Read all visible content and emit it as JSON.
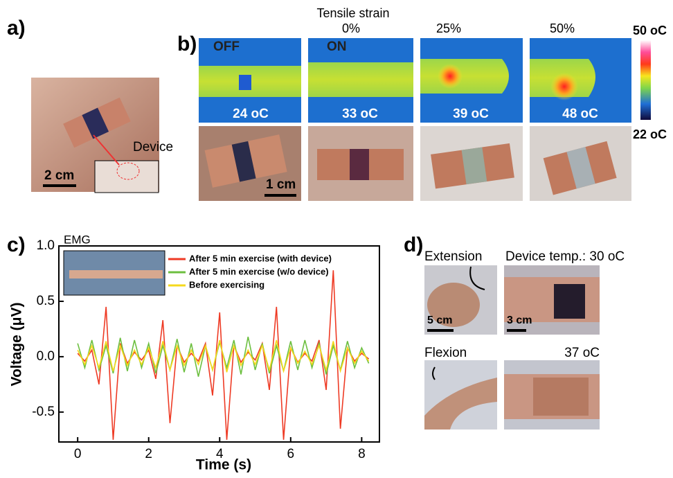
{
  "panel_a": {
    "label": "a)",
    "device": "Device",
    "scale": "2 cm"
  },
  "panel_b": {
    "label": "b)",
    "header": "Tensile strain",
    "strains": [
      "0%",
      "25%",
      "50%"
    ],
    "states": [
      "OFF",
      "ON"
    ],
    "temps": [
      "24 oC",
      "33 oC",
      "39 oC",
      "48 oC"
    ],
    "colorbar_max": "50 oC",
    "colorbar_min": "22 oC",
    "scale": "1 cm"
  },
  "chart_data": {
    "type": "line",
    "label": "c)",
    "inset": "EMG",
    "x_label": "Time (s)",
    "y_label": "Voltage (μV)",
    "x": [
      0,
      0.2,
      0.4,
      0.6,
      0.8,
      1.0,
      1.2,
      1.4,
      1.6,
      1.8,
      2.0,
      2.2,
      2.4,
      2.6,
      2.8,
      3.0,
      3.2,
      3.4,
      3.6,
      3.8,
      4.0,
      4.2,
      4.4,
      4.6,
      4.8,
      5.0,
      5.2,
      5.4,
      5.6,
      5.8,
      6.0,
      6.2,
      6.4,
      6.6,
      6.8,
      7.0,
      7.2,
      7.4,
      7.6,
      7.8,
      8.0,
      8.2
    ],
    "series": [
      {
        "name": "After 5 min exercise (with device)",
        "color": "#ee3a24",
        "values": [
          0.03,
          -0.04,
          0.06,
          -0.25,
          0.45,
          -0.75,
          0.12,
          -0.06,
          0.04,
          -0.03,
          0.06,
          -0.2,
          0.33,
          -0.6,
          0.1,
          -0.05,
          0.03,
          -0.04,
          0.12,
          -0.35,
          0.4,
          -0.75,
          0.1,
          -0.05,
          0.04,
          -0.03,
          0.12,
          -0.3,
          0.45,
          -0.75,
          0.08,
          -0.05,
          0.03,
          -0.04,
          0.15,
          -0.3,
          0.78,
          -0.65,
          0.08,
          -0.04,
          0.03,
          -0.02
        ]
      },
      {
        "name": "After 5 min exercise (w/o device)",
        "color": "#6cbf3f",
        "values": [
          0.12,
          -0.1,
          0.15,
          -0.12,
          0.1,
          -0.15,
          0.17,
          -0.13,
          0.15,
          -0.1,
          0.12,
          -0.15,
          0.1,
          -0.12,
          0.16,
          -0.14,
          0.12,
          -0.18,
          0.1,
          -0.12,
          0.13,
          -0.1,
          0.15,
          -0.16,
          0.18,
          -0.12,
          0.12,
          -0.15,
          0.1,
          -0.13,
          0.14,
          -0.12,
          0.15,
          -0.1,
          0.12,
          -0.16,
          0.1,
          -0.12,
          0.14,
          -0.1,
          0.08,
          -0.06
        ]
      },
      {
        "name": "Before exercising",
        "color": "#f5d91c",
        "values": [
          0.06,
          -0.07,
          0.1,
          -0.1,
          0.14,
          -0.13,
          0.1,
          -0.08,
          0.06,
          -0.07,
          0.08,
          -0.1,
          0.14,
          -0.12,
          0.1,
          -0.08,
          0.06,
          -0.07,
          0.1,
          -0.12,
          0.15,
          -0.14,
          0.1,
          -0.08,
          0.06,
          -0.07,
          0.1,
          -0.12,
          0.15,
          -0.13,
          0.08,
          -0.06,
          0.05,
          -0.07,
          0.1,
          -0.12,
          0.14,
          -0.13,
          0.08,
          -0.06,
          0.05,
          -0.04
        ]
      }
    ],
    "xlim": [
      -0.53,
      8.5
    ],
    "xticks": [
      0,
      2,
      4,
      6,
      8
    ],
    "ylim": [
      -0.77,
      1.0
    ],
    "yticks": [
      -0.5,
      {
        "value": 0,
        "label": "0.0"
      },
      0.5,
      {
        "value": 1,
        "label": "1.0"
      }
    ]
  },
  "panel_d": {
    "label": "d)",
    "extension": "Extension",
    "device_temp": "Device temp.: 30 oC",
    "flexion": "Flexion",
    "temp2": "37 oC",
    "scale1": "5 cm",
    "scale2": "3 cm"
  }
}
